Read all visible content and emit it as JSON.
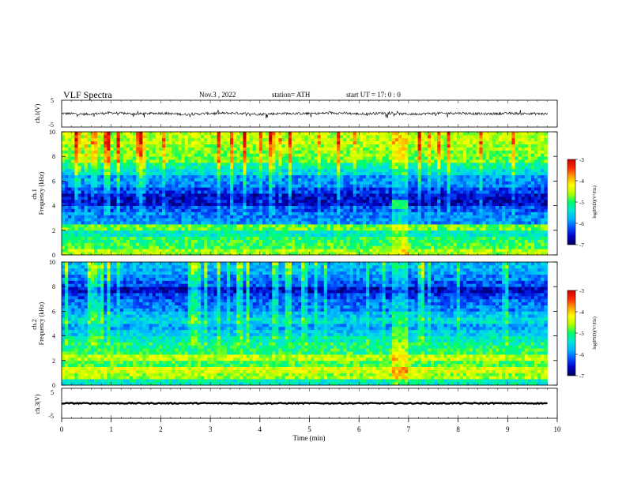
{
  "header": {
    "title": "VLF  Spectra",
    "date": "Nov.3  , 2022",
    "station": "station= ATH",
    "start_ut": "start  UT  =    17: 0  : 0"
  },
  "chart_data": [
    {
      "type": "line",
      "panel": "ch1-waveform",
      "ylabel": "ch.1(V)",
      "ylim": [
        -5,
        5
      ],
      "yticks": [
        "5",
        "-5"
      ],
      "x": [
        0,
        0.5,
        1,
        1.5,
        2,
        2.5,
        3,
        3.5,
        4,
        4.5,
        5,
        5.5,
        6,
        6.5,
        7,
        7.5,
        8,
        8.5,
        9,
        9.5,
        9.8
      ],
      "values": [
        0.1,
        -0.2,
        0.3,
        -0.1,
        0.2,
        -0.3,
        0.1,
        0.2,
        -0.2,
        0.1,
        0.0,
        0.3,
        -0.1,
        0.2,
        -0.2,
        0.1,
        0.2,
        -0.1,
        0.1,
        0.0,
        -0.1
      ]
    },
    {
      "type": "heatmap",
      "panel": "ch1-spectrogram",
      "ylabel": "ch.1\nFrequency  (kHz)",
      "ylim": [
        0,
        10
      ],
      "yticks": [
        "0",
        "2",
        "4",
        "6",
        "8",
        "10"
      ],
      "colorbar": {
        "label": "log(PSD)(V²/Hz)",
        "range": [
          -7,
          -3
        ],
        "ticks": [
          "-3",
          "-4",
          "-5",
          "-6",
          "-7"
        ]
      },
      "freq_bands_khz": [
        0,
        0.5,
        1,
        1.5,
        2,
        2.5,
        3,
        3.5,
        4,
        4.5,
        5,
        5.5,
        6,
        6.5,
        7,
        7.5,
        8,
        8.5,
        9,
        9.5
      ],
      "mean_log_psd": [
        -4.6,
        -4.9,
        -5.0,
        -5.3,
        -4.8,
        -5.9,
        -6.0,
        -6.2,
        -6.6,
        -6.6,
        -6.3,
        -6.0,
        -5.9,
        -5.5,
        -5.2,
        -4.8,
        -4.7,
        -4.6,
        -4.5,
        -4.5
      ],
      "event": {
        "t_min": [
          6.6,
          6.95
        ],
        "f_khz": [
          3.6,
          4.4
        ],
        "log_psd": -5.0
      }
    },
    {
      "type": "heatmap",
      "panel": "ch2-spectrogram",
      "ylabel": "ch.2\nFrequency  (kHz)",
      "ylim": [
        0,
        10
      ],
      "yticks": [
        "0",
        "2",
        "4",
        "6",
        "8",
        "10"
      ],
      "colorbar": {
        "label": "log(PSD)(V²/Hz)",
        "range": [
          -7,
          -3
        ],
        "ticks": [
          "-3",
          "-4",
          "-5",
          "-6",
          "-7"
        ]
      },
      "freq_bands_khz": [
        0,
        0.5,
        1,
        1.5,
        2,
        2.5,
        3,
        3.5,
        4,
        4.5,
        5,
        5.5,
        6,
        6.5,
        7,
        7.5,
        8,
        8.5,
        9,
        9.5
      ],
      "mean_log_psd": [
        -5.3,
        -4.6,
        -4.4,
        -4.9,
        -4.5,
        -5.0,
        -5.1,
        -5.3,
        -5.6,
        -5.8,
        -5.5,
        -5.7,
        -6.0,
        -6.1,
        -6.3,
        -6.6,
        -6.2,
        -6.0,
        -5.8,
        -5.7
      ],
      "event": {
        "t_min": [
          6.6,
          6.95
        ],
        "f_khz": [
          3.6,
          4.6
        ],
        "log_psd": -4.8
      }
    },
    {
      "type": "line",
      "panel": "ch3-waveform",
      "ylabel": "ch.3(V)",
      "ylim": [
        -5,
        5
      ],
      "yticks": [
        "5",
        "-5"
      ],
      "x": [
        0,
        9.8
      ],
      "values": [
        0,
        0
      ]
    }
  ],
  "xaxis": {
    "label": "Time  (min)",
    "ticks": [
      "0",
      "1",
      "2",
      "3",
      "4",
      "5",
      "6",
      "7",
      "8",
      "9",
      "10"
    ],
    "xlim": [
      0,
      10
    ],
    "data_end_min": 9.8
  },
  "colors": {
    "colormap": [
      "#00005a",
      "#0000c8",
      "#0050ff",
      "#00b4ff",
      "#00e6dc",
      "#00ff64",
      "#b4ff00",
      "#ffff00",
      "#ffa000",
      "#ff2800",
      "#c80000"
    ]
  }
}
